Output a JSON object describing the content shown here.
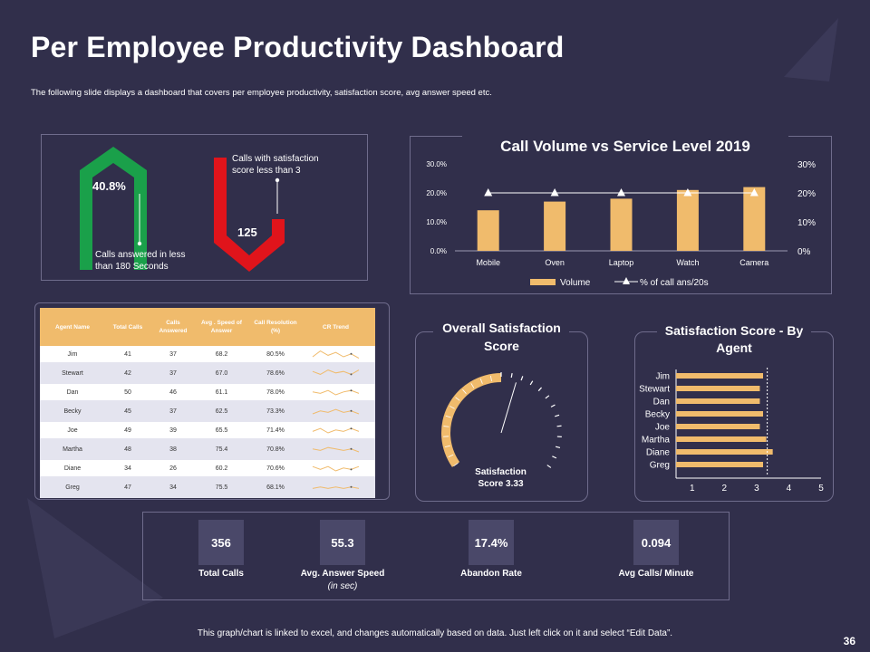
{
  "title": "Per Employee Productivity Dashboard",
  "subtitle": "The following slide displays a dashboard that covers per employee productivity, satisfaction score, avg answer speed etc.",
  "summary": {
    "green_value": "40.8%",
    "green_label_1": "Calls answered in less",
    "green_label_2": "than 180 Seconds",
    "red_value": "125",
    "red_label_1": "Calls with satisfaction",
    "red_label_2": "score less than 3"
  },
  "call_volume_chart": {
    "chart_data": {
      "type": "bar",
      "title": "Call Volume vs Service Level 2019",
      "categories": [
        "Mobile",
        "Oven",
        "Laptop",
        "Watch",
        "Camera"
      ],
      "series": [
        {
          "name": "Volume",
          "type": "bar",
          "values": [
            14,
            17,
            18,
            21,
            22
          ]
        },
        {
          "name": "% of call ans/20s",
          "type": "line",
          "values": [
            20,
            20,
            20,
            20,
            20
          ]
        }
      ],
      "left_axis_ticks": [
        "0.0%",
        "10.0%",
        "20.0%",
        "30.0%"
      ],
      "right_axis_ticks": [
        "0%",
        "10%",
        "20%",
        "30%"
      ],
      "ylim": [
        0,
        30
      ]
    }
  },
  "agent_table": {
    "headers": [
      "Agent Name",
      "Total Calls",
      "Calls Answered",
      "Avg . Speed of Answer",
      "Call Resolution (%)",
      "CR Trend"
    ],
    "rows": [
      [
        "Jim",
        "41",
        "37",
        "68.2",
        "80.5%"
      ],
      [
        "Stewart",
        "42",
        "37",
        "67.0",
        "78.6%"
      ],
      [
        "Dan",
        "50",
        "46",
        "61.1",
        "78.0%"
      ],
      [
        "Becky",
        "45",
        "37",
        "62.5",
        "73.3%"
      ],
      [
        "Joe",
        "49",
        "39",
        "65.5",
        "71.4%"
      ],
      [
        "Martha",
        "48",
        "38",
        "75.4",
        "70.8%"
      ],
      [
        "Diane",
        "34",
        "26",
        "60.2",
        "70.6%"
      ],
      [
        "Greg",
        "47",
        "34",
        "75.5",
        "68.1%"
      ]
    ]
  },
  "satisfaction": {
    "title_1": "Overall Satisfaction",
    "title_2": "Score",
    "label_1": "Satisfaction",
    "label_2": "Score 3.33",
    "score": 3.33,
    "max": 5
  },
  "agent_score_chart": {
    "chart_data": {
      "type": "bar",
      "orientation": "horizontal",
      "title": "Satisfaction Score - By Agent",
      "categories": [
        "Jim",
        "Stewart",
        "Dan",
        "Becky",
        "Joe",
        "Martha",
        "Diane",
        "Greg"
      ],
      "values": [
        3.2,
        3.1,
        3.1,
        3.2,
        3.1,
        3.3,
        3.5,
        3.2
      ],
      "reference_line": 3.33,
      "x_ticks": [
        "1",
        "2",
        "3",
        "4",
        "5"
      ],
      "xlim": [
        0.5,
        5
      ]
    }
  },
  "kpis": [
    {
      "value": "356",
      "label": "Total Calls",
      "sub": ""
    },
    {
      "value": "55.3",
      "label": "Avg. Answer Speed",
      "sub": "(in sec)"
    },
    {
      "value": "17.4%",
      "label": "Abandon Rate",
      "sub": ""
    },
    {
      "value": "0.094",
      "label": "Avg Calls/ Minute",
      "sub": ""
    }
  ],
  "footer": "This graph/chart is linked to excel, and changes automatically based on data. Just left click on it and select “Edit Data”.",
  "page_number": "36",
  "colors": {
    "accent": "#f0bb6c",
    "green": "#1aa04a",
    "red": "#e0141b",
    "bg": "#312f4b"
  }
}
